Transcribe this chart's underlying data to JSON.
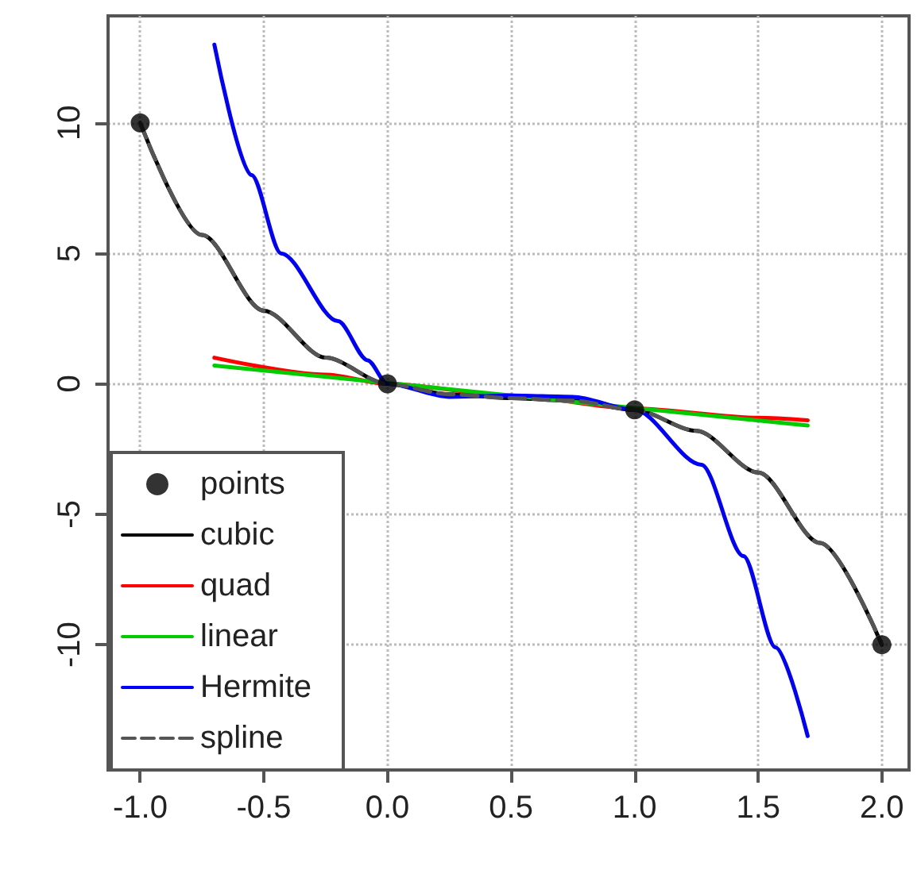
{
  "chart_data": {
    "type": "line",
    "xlim": [
      -1.13,
      2.11
    ],
    "xticks": [
      {
        "value": -1,
        "label": "-1.0"
      },
      {
        "value": -0.5,
        "label": "-0.5"
      },
      {
        "value": 0,
        "label": "0.0"
      },
      {
        "value": 0.5,
        "label": "0.5"
      },
      {
        "value": 1,
        "label": "1.0"
      },
      {
        "value": 1.5,
        "label": "1.5"
      },
      {
        "value": 2,
        "label": "2.0"
      }
    ],
    "ylim": [
      -14.8,
      14.1
    ],
    "yticks": [
      -10,
      -5,
      0,
      5,
      10
    ],
    "grid": true,
    "legend": "bottom left",
    "series": [
      {
        "name": "points",
        "type": "scatter",
        "marker": "circle",
        "color": "#000000",
        "x": [
          -1,
          0,
          1,
          2
        ],
        "values": [
          10,
          0,
          -1,
          -10
        ]
      },
      {
        "name": "cubic",
        "marker": "none",
        "line_style": "solid",
        "color": "#000000",
        "x": [
          -1,
          -0.75,
          -0.5,
          -0.25,
          0,
          0.25,
          0.5,
          0.75,
          1,
          1.25,
          1.5,
          1.75,
          2
        ],
        "values": [
          10,
          5.7,
          2.8,
          1.0,
          0,
          -0.4,
          -0.55,
          -0.65,
          -1,
          -1.8,
          -3.4,
          -6.1,
          -10
        ]
      },
      {
        "name": "quad",
        "marker": "none",
        "line_style": "solid",
        "color": "#ff0000",
        "x": [
          -0.7,
          -0.25,
          0,
          0.5,
          1,
          1.5,
          1.7
        ],
        "values": [
          1.0,
          0.35,
          0,
          -0.45,
          -0.95,
          -1.3,
          -1.4
        ]
      },
      {
        "name": "linear",
        "marker": "none",
        "line_style": "solid",
        "color": "#00cc00",
        "x": [
          -0.7,
          1.7
        ],
        "values": [
          0.7,
          -1.6
        ]
      },
      {
        "name": "Hermite",
        "marker": "none",
        "line_style": "solid",
        "color": "#0000ff",
        "x": [
          -0.7,
          -0.55,
          -0.43,
          -0.2,
          -0.08,
          0,
          0.25,
          0.5,
          0.75,
          1,
          1.27,
          1.44,
          1.57,
          1.7
        ],
        "values": [
          13.0,
          8.0,
          5.0,
          2.4,
          0.9,
          0,
          -0.5,
          -0.45,
          -0.5,
          -1,
          -3.1,
          -6.6,
          -10.1,
          -13.5
        ]
      },
      {
        "name": "spline",
        "marker": "none",
        "line_style": "dashed",
        "color": "#555555",
        "x": [
          -1,
          -0.75,
          -0.5,
          -0.25,
          0,
          0.25,
          0.5,
          0.75,
          1,
          1.25,
          1.5,
          1.75,
          2
        ],
        "values": [
          10,
          5.7,
          2.8,
          1.0,
          0,
          -0.4,
          -0.55,
          -0.65,
          -1,
          -1.8,
          -3.4,
          -6.1,
          -10
        ]
      }
    ]
  }
}
